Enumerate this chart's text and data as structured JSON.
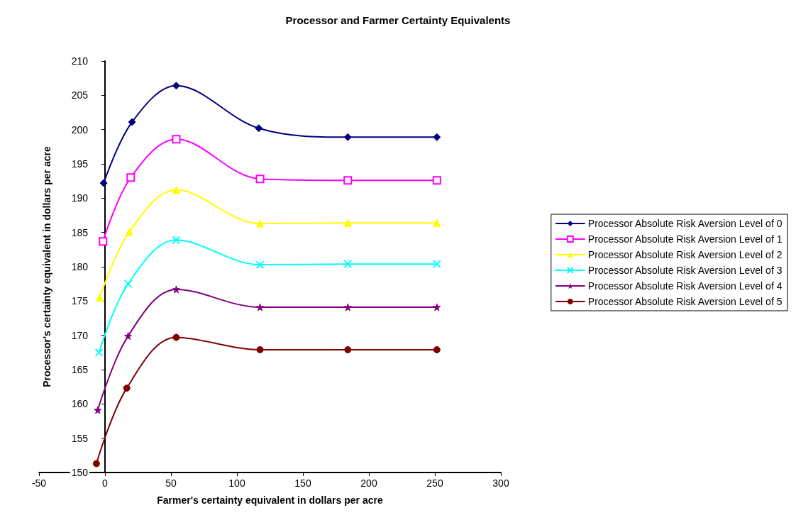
{
  "chart_data": {
    "type": "line",
    "title": "Processor and Farmer Certainty Equivalents",
    "xlabel": "Farmer's certainty equivalent in dollars per acre",
    "ylabel": "Processor's certainty equivalent in dollars per acre",
    "xlim": [
      -50,
      300
    ],
    "xticks": [
      -50,
      0,
      50,
      100,
      150,
      200,
      250,
      300
    ],
    "ylim": [
      150,
      210
    ],
    "yticks": [
      150,
      155,
      160,
      165,
      170,
      175,
      180,
      185,
      190,
      195,
      200,
      205,
      210
    ],
    "grid": false,
    "legend": "right",
    "line_style": "solid",
    "series": [
      {
        "name": "Processor Absolute Risk Aversion Level of 0",
        "color": "#000080",
        "marker": "diamond",
        "x": [
          -1,
          20.5,
          54,
          116.5,
          184,
          251.5
        ],
        "values": [
          192.2,
          201.1,
          206.4,
          200.2,
          198.9,
          198.9
        ]
      },
      {
        "name": "Processor Absolute Risk Aversion Level of 1",
        "color": "#ff00ff",
        "marker": "square",
        "x": [
          -1.5,
          19.5,
          54,
          117.5,
          184,
          251.5
        ],
        "values": [
          183.7,
          193,
          198.6,
          192.8,
          192.6,
          192.6
        ]
      },
      {
        "name": "Processor Absolute Risk Aversion Level of 2",
        "color": "#ffff00",
        "marker": "triangle",
        "x": [
          -4,
          18.5,
          54,
          117.5,
          184,
          251.5
        ],
        "values": [
          175.5,
          185.1,
          191.2,
          186.3,
          186.4,
          186.4
        ]
      },
      {
        "name": "Processor Absolute Risk Aversion Level of 3",
        "color": "#00ffff",
        "marker": "cross",
        "x": [
          -4.5,
          17.5,
          54,
          117.5,
          184,
          251.5
        ],
        "values": [
          167.5,
          177.5,
          183.9,
          180.3,
          180.4,
          180.4
        ]
      },
      {
        "name": "Processor Absolute Risk Aversion Level of 4",
        "color": "#800080",
        "marker": "star",
        "x": [
          -5.5,
          17.5,
          54,
          117.5,
          184,
          251.5
        ],
        "values": [
          159.1,
          169.9,
          176.7,
          174.1,
          174.1,
          174.1
        ]
      },
      {
        "name": "Processor Absolute Risk Aversion Level of 5",
        "color": "#800000",
        "marker": "circle",
        "x": [
          -6.5,
          16.5,
          54,
          117.5,
          184,
          251.5
        ],
        "values": [
          151.3,
          162.3,
          169.7,
          167.9,
          167.9,
          167.9
        ]
      }
    ]
  }
}
